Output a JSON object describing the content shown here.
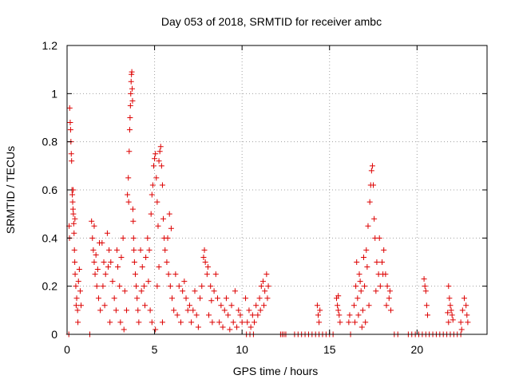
{
  "chart_data": {
    "type": "scatter",
    "title": "Day 053 of 2018, SRMTID for receiver ambc",
    "xlabel": "GPS time / hours",
    "ylabel": "SRMTID / TECUs",
    "xlim": [
      0,
      24
    ],
    "ylim": [
      0,
      1.2
    ],
    "x_ticks": [
      0,
      5,
      10,
      15,
      20
    ],
    "x_tick_labels": [
      "0",
      "5",
      "10",
      "15",
      "20"
    ],
    "y_ticks": [
      0,
      0.2,
      0.4,
      0.6,
      0.8,
      1.0,
      1.2
    ],
    "y_tick_labels": [
      "0",
      "0.2",
      "0.4",
      "0.6",
      "0.8",
      "1",
      "1.2"
    ],
    "grid": true,
    "marker": "plus",
    "color": "#dd0000",
    "series": [
      {
        "name": "SRMTID",
        "points": [
          [
            0.1,
            0.0
          ],
          [
            0.15,
            0.94
          ],
          [
            0.18,
            0.88
          ],
          [
            0.2,
            0.85
          ],
          [
            0.22,
            0.8
          ],
          [
            0.24,
            0.75
          ],
          [
            0.26,
            0.72
          ],
          [
            0.28,
            0.6
          ],
          [
            0.3,
            0.58
          ],
          [
            0.32,
            0.55
          ],
          [
            0.34,
            0.52
          ],
          [
            0.36,
            0.5
          ],
          [
            0.38,
            0.46
          ],
          [
            0.4,
            0.42
          ],
          [
            0.42,
            0.35
          ],
          [
            0.44,
            0.3
          ],
          [
            0.46,
            0.25
          ],
          [
            0.5,
            0.2
          ],
          [
            0.55,
            0.15
          ],
          [
            0.6,
            0.1
          ],
          [
            0.62,
            0.05
          ],
          [
            0.65,
            0.22
          ],
          [
            0.7,
            0.27
          ],
          [
            0.75,
            0.18
          ],
          [
            0.8,
            0.12
          ],
          [
            0.12,
            0.45
          ],
          [
            0.14,
            0.4
          ],
          [
            0.35,
            0.6
          ],
          [
            0.45,
            0.48
          ],
          [
            0.52,
            0.12
          ],
          [
            1.3,
            0.0
          ],
          [
            1.4,
            0.47
          ],
          [
            1.45,
            0.4
          ],
          [
            1.5,
            0.35
          ],
          [
            1.55,
            0.3
          ],
          [
            1.6,
            0.25
          ],
          [
            1.7,
            0.2
          ],
          [
            1.8,
            0.15
          ],
          [
            1.9,
            0.1
          ],
          [
            2.0,
            0.38
          ],
          [
            2.1,
            0.3
          ],
          [
            2.2,
            0.25
          ],
          [
            2.3,
            0.42
          ],
          [
            2.4,
            0.35
          ],
          [
            2.5,
            0.3
          ],
          [
            2.6,
            0.22
          ],
          [
            2.7,
            0.15
          ],
          [
            2.8,
            0.1
          ],
          [
            2.9,
            0.28
          ],
          [
            3.0,
            0.2
          ],
          [
            3.1,
            0.32
          ],
          [
            3.2,
            0.4
          ],
          [
            3.3,
            0.18
          ],
          [
            3.4,
            0.1
          ],
          [
            1.65,
            0.33
          ],
          [
            1.75,
            0.27
          ],
          [
            2.05,
            0.2
          ],
          [
            2.15,
            0.12
          ],
          [
            2.45,
            0.05
          ],
          [
            2.85,
            0.35
          ],
          [
            3.05,
            0.05
          ],
          [
            3.25,
            0.02
          ],
          [
            1.55,
            0.45
          ],
          [
            1.85,
            0.38
          ],
          [
            2.35,
            0.28
          ],
          [
            3.45,
            0.58
          ],
          [
            3.5,
            0.65
          ],
          [
            3.55,
            0.76
          ],
          [
            3.58,
            0.85
          ],
          [
            3.6,
            0.9
          ],
          [
            3.62,
            0.95
          ],
          [
            3.64,
            1.0
          ],
          [
            3.66,
            1.05
          ],
          [
            3.68,
            1.08
          ],
          [
            3.7,
            1.09
          ],
          [
            3.72,
            1.02
          ],
          [
            3.74,
            0.97
          ],
          [
            3.76,
            0.52
          ],
          [
            3.78,
            0.47
          ],
          [
            3.8,
            0.4
          ],
          [
            3.85,
            0.3
          ],
          [
            3.9,
            0.25
          ],
          [
            3.95,
            0.2
          ],
          [
            4.0,
            0.15
          ],
          [
            4.05,
            0.1
          ],
          [
            4.1,
            0.05
          ],
          [
            3.52,
            0.55
          ],
          [
            3.82,
            0.35
          ],
          [
            4.2,
            0.35
          ],
          [
            4.3,
            0.28
          ],
          [
            4.4,
            0.2
          ],
          [
            4.5,
            0.32
          ],
          [
            4.6,
            0.4
          ],
          [
            4.7,
            0.35
          ],
          [
            4.8,
            0.5
          ],
          [
            4.85,
            0.58
          ],
          [
            4.9,
            0.62
          ],
          [
            4.95,
            0.7
          ],
          [
            5.0,
            0.73
          ],
          [
            5.05,
            0.75
          ],
          [
            5.1,
            0.65
          ],
          [
            5.15,
            0.55
          ],
          [
            5.2,
            0.45
          ],
          [
            5.25,
            0.72
          ],
          [
            5.3,
            0.76
          ],
          [
            5.35,
            0.78
          ],
          [
            5.4,
            0.7
          ],
          [
            5.45,
            0.62
          ],
          [
            5.5,
            0.48
          ],
          [
            5.55,
            0.4
          ],
          [
            5.6,
            0.35
          ],
          [
            5.7,
            0.3
          ],
          [
            5.8,
            0.25
          ],
          [
            5.9,
            0.2
          ],
          [
            6.0,
            0.15
          ],
          [
            6.1,
            0.1
          ],
          [
            4.75,
            0.1
          ],
          [
            4.85,
            0.05
          ],
          [
            5.05,
            0.02
          ],
          [
            5.15,
            0.2
          ],
          [
            5.25,
            0.28
          ],
          [
            5.45,
            0.05
          ],
          [
            4.25,
            0.18
          ],
          [
            4.45,
            0.12
          ],
          [
            4.65,
            0.22
          ],
          [
            5.75,
            0.4
          ],
          [
            5.85,
            0.5
          ],
          [
            5.95,
            0.44
          ],
          [
            6.2,
            0.25
          ],
          [
            6.4,
            0.2
          ],
          [
            6.6,
            0.18
          ],
          [
            6.8,
            0.15
          ],
          [
            7.0,
            0.12
          ],
          [
            7.2,
            0.1
          ],
          [
            7.4,
            0.08
          ],
          [
            7.6,
            0.15
          ],
          [
            7.8,
            0.32
          ],
          [
            7.85,
            0.35
          ],
          [
            7.9,
            0.3
          ],
          [
            8.0,
            0.25
          ],
          [
            8.2,
            0.2
          ],
          [
            8.4,
            0.18
          ],
          [
            8.6,
            0.15
          ],
          [
            8.8,
            0.12
          ],
          [
            9.0,
            0.1
          ],
          [
            9.2,
            0.08
          ],
          [
            9.4,
            0.12
          ],
          [
            9.6,
            0.18
          ],
          [
            9.8,
            0.1
          ],
          [
            10.0,
            0.05
          ],
          [
            6.3,
            0.08
          ],
          [
            6.5,
            0.05
          ],
          [
            6.7,
            0.22
          ],
          [
            6.9,
            0.1
          ],
          [
            7.1,
            0.05
          ],
          [
            7.3,
            0.18
          ],
          [
            7.5,
            0.03
          ],
          [
            7.7,
            0.2
          ],
          [
            8.1,
            0.08
          ],
          [
            8.3,
            0.05
          ],
          [
            8.5,
            0.25
          ],
          [
            8.7,
            0.05
          ],
          [
            8.9,
            0.03
          ],
          [
            9.1,
            0.15
          ],
          [
            9.3,
            0.02
          ],
          [
            9.5,
            0.05
          ],
          [
            9.7,
            0.03
          ],
          [
            9.9,
            0.08
          ],
          [
            8.05,
            0.28
          ],
          [
            8.25,
            0.14
          ],
          [
            10.2,
            0.15
          ],
          [
            10.4,
            0.1
          ],
          [
            10.6,
            0.08
          ],
          [
            10.8,
            0.12
          ],
          [
            11.0,
            0.15
          ],
          [
            11.1,
            0.2
          ],
          [
            11.2,
            0.22
          ],
          [
            11.3,
            0.18
          ],
          [
            11.4,
            0.25
          ],
          [
            11.5,
            0.2
          ],
          [
            10.3,
            0.05
          ],
          [
            10.5,
            0.03
          ],
          [
            10.7,
            0.05
          ],
          [
            10.9,
            0.08
          ],
          [
            11.05,
            0.1
          ],
          [
            11.25,
            0.12
          ],
          [
            11.45,
            0.15
          ],
          [
            10.25,
            0.0
          ],
          [
            10.45,
            0.0
          ],
          [
            10.65,
            0.0
          ],
          [
            12.2,
            0.0
          ],
          [
            12.3,
            0.0
          ],
          [
            12.4,
            0.0
          ],
          [
            12.5,
            0.0
          ],
          [
            13.0,
            0.0
          ],
          [
            13.2,
            0.0
          ],
          [
            13.4,
            0.0
          ],
          [
            13.6,
            0.0
          ],
          [
            13.8,
            0.0
          ],
          [
            14.0,
            0.0
          ],
          [
            14.2,
            0.0
          ],
          [
            14.4,
            0.0
          ],
          [
            14.6,
            0.0
          ],
          [
            14.8,
            0.0
          ],
          [
            15.0,
            0.0
          ],
          [
            15.2,
            0.0
          ],
          [
            14.3,
            0.12
          ],
          [
            14.35,
            0.08
          ],
          [
            14.4,
            0.05
          ],
          [
            14.45,
            0.1
          ],
          [
            15.4,
            0.15
          ],
          [
            15.45,
            0.12
          ],
          [
            15.5,
            0.1
          ],
          [
            15.55,
            0.08
          ],
          [
            15.6,
            0.05
          ],
          [
            15.5,
            0.16
          ],
          [
            16.1,
            0.05
          ],
          [
            16.15,
            0.08
          ],
          [
            16.4,
            0.12
          ],
          [
            16.5,
            0.2
          ],
          [
            16.6,
            0.15
          ],
          [
            16.7,
            0.25
          ],
          [
            16.8,
            0.18
          ],
          [
            16.9,
            0.1
          ],
          [
            17.0,
            0.2
          ],
          [
            17.1,
            0.35
          ],
          [
            17.2,
            0.45
          ],
          [
            17.3,
            0.55
          ],
          [
            17.35,
            0.62
          ],
          [
            17.4,
            0.68
          ],
          [
            17.45,
            0.7
          ],
          [
            17.5,
            0.62
          ],
          [
            17.55,
            0.48
          ],
          [
            17.6,
            0.4
          ],
          [
            17.7,
            0.3
          ],
          [
            17.8,
            0.25
          ],
          [
            17.9,
            0.2
          ],
          [
            18.0,
            0.3
          ],
          [
            18.1,
            0.35
          ],
          [
            18.2,
            0.25
          ],
          [
            18.3,
            0.2
          ],
          [
            18.4,
            0.15
          ],
          [
            18.5,
            0.1
          ],
          [
            16.45,
            0.05
          ],
          [
            16.65,
            0.08
          ],
          [
            16.85,
            0.03
          ],
          [
            17.05,
            0.05
          ],
          [
            17.25,
            0.12
          ],
          [
            17.65,
            0.18
          ],
          [
            17.85,
            0.4
          ],
          [
            18.05,
            0.25
          ],
          [
            18.25,
            0.12
          ],
          [
            18.45,
            0.18
          ],
          [
            16.55,
            0.3
          ],
          [
            16.75,
            0.22
          ],
          [
            16.95,
            0.32
          ],
          [
            17.15,
            0.28
          ],
          [
            16.2,
            0.0
          ],
          [
            18.7,
            0.0
          ],
          [
            18.9,
            0.0
          ],
          [
            19.5,
            0.0
          ],
          [
            19.7,
            0.0
          ],
          [
            19.9,
            0.0
          ],
          [
            20.1,
            0.0
          ],
          [
            20.3,
            0.0
          ],
          [
            20.5,
            0.0
          ],
          [
            20.7,
            0.0
          ],
          [
            20.9,
            0.0
          ],
          [
            21.1,
            0.0
          ],
          [
            21.3,
            0.0
          ],
          [
            21.5,
            0.0
          ],
          [
            21.7,
            0.0
          ],
          [
            21.9,
            0.0
          ],
          [
            22.1,
            0.0
          ],
          [
            22.3,
            0.0
          ],
          [
            22.5,
            0.0
          ],
          [
            20.4,
            0.23
          ],
          [
            20.45,
            0.2
          ],
          [
            20.5,
            0.18
          ],
          [
            20.55,
            0.12
          ],
          [
            20.6,
            0.08
          ],
          [
            21.8,
            0.2
          ],
          [
            21.85,
            0.15
          ],
          [
            21.9,
            0.12
          ],
          [
            21.95,
            0.1
          ],
          [
            22.0,
            0.08
          ],
          [
            22.05,
            0.06
          ],
          [
            21.75,
            0.09
          ],
          [
            21.8,
            0.05
          ],
          [
            22.5,
            0.05
          ],
          [
            22.6,
            0.1
          ],
          [
            22.7,
            0.15
          ],
          [
            22.8,
            0.12
          ],
          [
            22.85,
            0.08
          ],
          [
            22.9,
            0.05
          ],
          [
            22.55,
            0.02
          ]
        ]
      }
    ]
  }
}
